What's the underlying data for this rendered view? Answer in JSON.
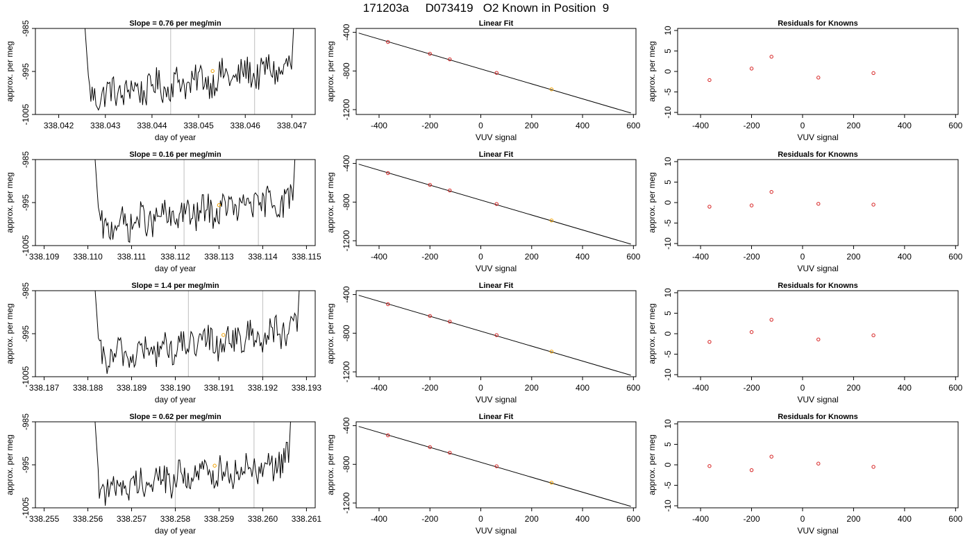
{
  "figure_title": "171203a     D073419   O2 Known in Position  9",
  "chart_data": [
    {
      "type": "line",
      "title": "Slope =  0.76  per meg/min",
      "xlabel": "day of year",
      "ylabel": "approx. per meg",
      "x_ticks": [
        "338.042",
        "338.043",
        "338.044",
        "338.045",
        "338.046",
        "338.047"
      ],
      "y_ticks": [
        "-985",
        "-995",
        "-1005"
      ],
      "xlim": [
        338.0415,
        338.0475
      ],
      "ylim": [
        -1005,
        -985
      ],
      "vlines": [
        338.0444,
        338.0462
      ],
      "highlight_point": {
        "x": 338.0453,
        "y": -994.9
      },
      "trace_start": 338.0425,
      "trace_end": 338.0471,
      "grid": false
    },
    {
      "type": "scatter",
      "title": "Linear Fit",
      "xlabel": "VUV signal",
      "ylabel": "approx. per meg",
      "x_ticks": [
        "-400",
        "-200",
        "0",
        "200",
        "400",
        "600"
      ],
      "y_ticks": [
        "-400",
        "-800",
        "-1200"
      ],
      "xlim": [
        -490,
        610
      ],
      "ylim": [
        -1250,
        -360
      ],
      "points": [
        {
          "x": -365,
          "y": -500
        },
        {
          "x": -200,
          "y": -622
        },
        {
          "x": -122,
          "y": -680
        },
        {
          "x": 62,
          "y": -820
        },
        {
          "x": 278,
          "y": -990
        }
      ],
      "highlight_index": 4,
      "fit_line": {
        "x": [
          -480,
          590
        ],
        "y": -1235
      },
      "fit_start_y": -408
    },
    {
      "type": "scatter",
      "title": "Residuals for Knowns",
      "xlabel": "VUV signal",
      "ylabel": "approx. per meg",
      "x_ticks": [
        "-400",
        "-200",
        "0",
        "200",
        "400",
        "600"
      ],
      "y_ticks": [
        "10",
        "5",
        "0",
        "-5",
        "-10"
      ],
      "xlim": [
        -490,
        610
      ],
      "ylim": [
        -10.5,
        10.5
      ],
      "points": [
        {
          "x": -365,
          "y": -2.1
        },
        {
          "x": -200,
          "y": 0.7
        },
        {
          "x": -122,
          "y": 3.6
        },
        {
          "x": 62,
          "y": -1.5
        },
        {
          "x": 278,
          "y": -0.4
        }
      ]
    },
    {
      "type": "line",
      "title": "Slope =  0.16  per meg/min",
      "xlabel": "day of year",
      "ylabel": "approx. per meg",
      "x_ticks": [
        "338.109",
        "338.110",
        "338.111",
        "338.112",
        "338.113",
        "338.114",
        "338.115"
      ],
      "y_ticks": [
        "-985",
        "-995",
        "-1005"
      ],
      "xlim": [
        338.1088,
        338.1152
      ],
      "ylim": [
        -1005,
        -985
      ],
      "vlines": [
        338.1122,
        338.1139
      ],
      "highlight_point": {
        "x": 338.113,
        "y": -995.6
      },
      "trace_start": 338.1101,
      "trace_end": 338.1148,
      "grid": false
    },
    {
      "type": "scatter",
      "title": "Linear Fit",
      "xlabel": "VUV signal",
      "ylabel": "approx. per meg",
      "x_ticks": [
        "-400",
        "-200",
        "0",
        "200",
        "400",
        "600"
      ],
      "y_ticks": [
        "-400",
        "-800",
        "-1200"
      ],
      "xlim": [
        -490,
        610
      ],
      "ylim": [
        -1250,
        -360
      ],
      "points": [
        {
          "x": -365,
          "y": -500
        },
        {
          "x": -200,
          "y": -622
        },
        {
          "x": -122,
          "y": -680
        },
        {
          "x": 62,
          "y": -820
        },
        {
          "x": 278,
          "y": -990
        }
      ],
      "highlight_index": 4,
      "fit_line": {
        "x": [
          -480,
          590
        ],
        "y": -1235
      },
      "fit_start_y": -408
    },
    {
      "type": "scatter",
      "title": "Residuals for Knowns",
      "xlabel": "VUV signal",
      "ylabel": "approx. per meg",
      "x_ticks": [
        "-400",
        "-200",
        "0",
        "200",
        "400",
        "600"
      ],
      "y_ticks": [
        "10",
        "5",
        "0",
        "-5",
        "-10"
      ],
      "xlim": [
        -490,
        610
      ],
      "ylim": [
        -10.5,
        10.5
      ],
      "points": [
        {
          "x": -365,
          "y": -1.0
        },
        {
          "x": -200,
          "y": -0.7
        },
        {
          "x": -122,
          "y": 2.6
        },
        {
          "x": 62,
          "y": -0.3
        },
        {
          "x": 278,
          "y": -0.5
        }
      ]
    },
    {
      "type": "line",
      "title": "Slope =  1.4  per meg/min",
      "xlabel": "day of year",
      "ylabel": "approx. per meg",
      "x_ticks": [
        "338.187",
        "338.188",
        "338.189",
        "338.190",
        "338.191",
        "338.192",
        "338.193"
      ],
      "y_ticks": [
        "-985",
        "-995",
        "-1005"
      ],
      "xlim": [
        338.1868,
        338.1932
      ],
      "ylim": [
        -1005,
        -985
      ],
      "vlines": [
        338.1903,
        338.192
      ],
      "highlight_point": {
        "x": 338.1911,
        "y": -995.3
      },
      "trace_start": 338.1881,
      "trace_end": 338.1929,
      "grid": false
    },
    {
      "type": "scatter",
      "title": "Linear Fit",
      "xlabel": "VUV signal",
      "ylabel": "approx. per meg",
      "x_ticks": [
        "-400",
        "-200",
        "0",
        "200",
        "400",
        "600"
      ],
      "y_ticks": [
        "-400",
        "-800",
        "-1200"
      ],
      "xlim": [
        -490,
        610
      ],
      "ylim": [
        -1250,
        -360
      ],
      "points": [
        {
          "x": -365,
          "y": -500
        },
        {
          "x": -200,
          "y": -622
        },
        {
          "x": -122,
          "y": -680
        },
        {
          "x": 62,
          "y": -820
        },
        {
          "x": 278,
          "y": -990
        }
      ],
      "highlight_index": 4,
      "fit_line": {
        "x": [
          -480,
          590
        ],
        "y": -1235
      },
      "fit_start_y": -408
    },
    {
      "type": "scatter",
      "title": "Residuals for Knowns",
      "xlabel": "VUV signal",
      "ylabel": "approx. per meg",
      "x_ticks": [
        "-400",
        "-200",
        "0",
        "200",
        "400",
        "600"
      ],
      "y_ticks": [
        "10",
        "5",
        "0",
        "-5",
        "-10"
      ],
      "xlim": [
        -490,
        610
      ],
      "ylim": [
        -10.5,
        10.5
      ],
      "points": [
        {
          "x": -365,
          "y": -2.0
        },
        {
          "x": -200,
          "y": 0.4
        },
        {
          "x": -122,
          "y": 3.4
        },
        {
          "x": 62,
          "y": -1.4
        },
        {
          "x": 278,
          "y": -0.4
        }
      ]
    },
    {
      "type": "line",
      "title": "Slope =  0.62  per meg/min",
      "xlabel": "day of year",
      "ylabel": "approx. per meg",
      "x_ticks": [
        "338.255",
        "338.256",
        "338.257",
        "338.258",
        "338.259",
        "338.260",
        "338.261"
      ],
      "y_ticks": [
        "-985",
        "-995",
        "-1005"
      ],
      "xlim": [
        338.2548,
        338.2612
      ],
      "ylim": [
        -1005,
        -985
      ],
      "vlines": [
        338.258,
        338.2598
      ],
      "highlight_point": {
        "x": 338.2589,
        "y": -995.2
      },
      "trace_start": 338.2561,
      "trace_end": 338.2607,
      "grid": false
    },
    {
      "type": "scatter",
      "title": "Linear Fit",
      "xlabel": "VUV signal",
      "ylabel": "approx. per meg",
      "x_ticks": [
        "-400",
        "-200",
        "0",
        "200",
        "400",
        "600"
      ],
      "y_ticks": [
        "-400",
        "-800",
        "-1200"
      ],
      "xlim": [
        -490,
        610
      ],
      "ylim": [
        -1250,
        -360
      ],
      "points": [
        {
          "x": -365,
          "y": -500
        },
        {
          "x": -200,
          "y": -622
        },
        {
          "x": -122,
          "y": -680
        },
        {
          "x": 62,
          "y": -820
        },
        {
          "x": 278,
          "y": -990
        }
      ],
      "highlight_index": 4,
      "fit_line": {
        "x": [
          -480,
          590
        ],
        "y": -1235
      },
      "fit_start_y": -408
    },
    {
      "type": "scatter",
      "title": "Residuals for Knowns",
      "xlabel": "VUV signal",
      "ylabel": "approx. per meg",
      "x_ticks": [
        "-400",
        "-200",
        "0",
        "200",
        "400",
        "600"
      ],
      "y_ticks": [
        "10",
        "5",
        "0",
        "-5",
        "-10"
      ],
      "xlim": [
        -490,
        610
      ],
      "ylim": [
        -10.5,
        10.5
      ],
      "points": [
        {
          "x": -365,
          "y": -0.3
        },
        {
          "x": -200,
          "y": -1.3
        },
        {
          "x": -122,
          "y": 2.0
        },
        {
          "x": 62,
          "y": 0.3
        },
        {
          "x": 278,
          "y": -0.5
        }
      ]
    }
  ],
  "colors": {
    "trace": "#000000",
    "vline": "#c8c8c8",
    "point": "#d62020",
    "highlight": "#f0a000",
    "axis": "#000000"
  }
}
